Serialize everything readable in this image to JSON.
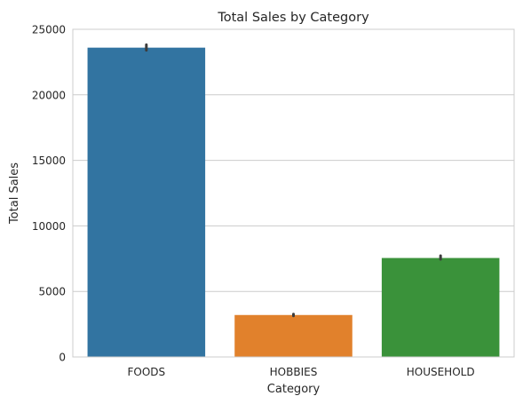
{
  "chart_data": {
    "type": "bar",
    "title": "Total Sales by Category",
    "xlabel": "Category",
    "ylabel": "Total Sales",
    "categories": [
      "FOODS",
      "HOBBIES",
      "HOUSEHOLD"
    ],
    "values": [
      23600,
      3200,
      7550
    ],
    "error_bars": [
      [
        23400,
        23820
      ],
      [
        3130,
        3270
      ],
      [
        7450,
        7720
      ]
    ],
    "colors": [
      "#3274a1",
      "#e1812c",
      "#3a923a"
    ],
    "ylim": [
      0,
      25000
    ],
    "yticks": [
      0,
      5000,
      10000,
      15000,
      20000,
      25000
    ],
    "grid": "horizontal",
    "legend": "none"
  }
}
